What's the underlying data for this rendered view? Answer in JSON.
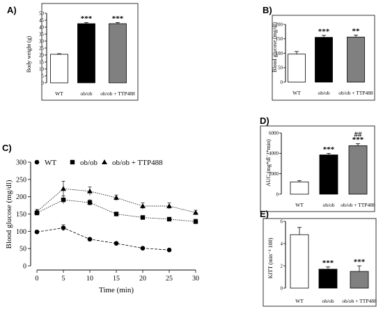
{
  "chart_data": [
    {
      "id": "A",
      "panel_label": "A)",
      "type": "bar",
      "categories": [
        "WT",
        "ob/ob",
        "ob/ob + TTP488"
      ],
      "values": [
        20.5,
        42.5,
        42.5
      ],
      "errors": [
        0.4,
        0.8,
        0.8
      ],
      "colors": [
        "#ffffff",
        "#000000",
        "#808080"
      ],
      "annotations": [
        "",
        "***",
        "***"
      ],
      "ylabel": "Body weight (g)",
      "ylim": [
        0,
        50
      ],
      "yticks": [
        0,
        5,
        10,
        15,
        20,
        25,
        30,
        35,
        40,
        45,
        50
      ]
    },
    {
      "id": "B",
      "panel_label": "B)",
      "type": "bar",
      "categories": [
        "WT",
        "ob/ob",
        "ob/ob + TTP488"
      ],
      "values": [
        97,
        155,
        156
      ],
      "errors": [
        9,
        7,
        7
      ],
      "colors": [
        "#ffffff",
        "#000000",
        "#808080"
      ],
      "annotations": [
        "",
        "***",
        "**"
      ],
      "ylabel": "Blood glucose (mg/dl)",
      "ylim": [
        0,
        200
      ],
      "yticks": [
        0,
        50,
        100,
        150,
        200
      ]
    },
    {
      "id": "C",
      "panel_label": "C)",
      "type": "line",
      "x": [
        0,
        5,
        10,
        15,
        20,
        25,
        30
      ],
      "series": [
        {
          "name": "WT",
          "marker": "circle",
          "values": [
            98,
            110,
            77,
            65,
            51,
            46,
            null
          ],
          "errors": [
            5,
            9,
            4,
            3,
            3,
            2,
            null
          ]
        },
        {
          "name": "ob/ob",
          "marker": "square",
          "values": [
            153,
            191,
            183,
            150,
            140,
            135,
            128
          ],
          "errors": [
            6,
            11,
            8,
            5,
            4,
            5,
            7
          ]
        },
        {
          "name": "ob/ob + TTP488",
          "marker": "triangle",
          "values": [
            157,
            223,
            216,
            197,
            173,
            173,
            154
          ],
          "errors": [
            6,
            22,
            12,
            8,
            9,
            9,
            7
          ]
        }
      ],
      "xlabel": "Time (min)",
      "ylabel": "Blood glucose (mg/dl)",
      "xlim": [
        0,
        30
      ],
      "ylim": [
        0,
        300
      ],
      "xticks": [
        0,
        5,
        10,
        15,
        20,
        25,
        30
      ],
      "yticks": [
        0,
        50,
        100,
        150,
        200,
        250,
        300
      ],
      "legend": "top"
    },
    {
      "id": "D",
      "panel_label": "D)",
      "type": "bar",
      "categories": [
        "WT",
        "ob/ob",
        "ob/ob + TTP488"
      ],
      "values": [
        1200,
        3850,
        4750
      ],
      "errors": [
        120,
        150,
        200
      ],
      "colors": [
        "#ffffff",
        "#000000",
        "#808080"
      ],
      "annotations": [
        "",
        "***",
        "***"
      ],
      "annotations2": [
        "",
        "",
        "##"
      ],
      "ylabel": "AUC (mg*dl⁻¹*min)",
      "ylim": [
        0,
        6000
      ],
      "yticks": [
        0,
        2000,
        4000,
        6000
      ]
    },
    {
      "id": "E",
      "panel_label": "E)",
      "type": "bar",
      "categories": [
        "WT",
        "ob/ob",
        "ob/ob + TTP488"
      ],
      "values": [
        4.8,
        1.7,
        1.5
      ],
      "errors": [
        0.65,
        0.2,
        0.5
      ],
      "colors": [
        "#ffffff",
        "#000000",
        "#808080"
      ],
      "annotations": [
        "",
        "***",
        "***"
      ],
      "ylabel": "KITT (min⁻¹ 100)",
      "ylim": [
        0,
        6
      ],
      "yticks": [
        0,
        2,
        4,
        6
      ]
    }
  ]
}
